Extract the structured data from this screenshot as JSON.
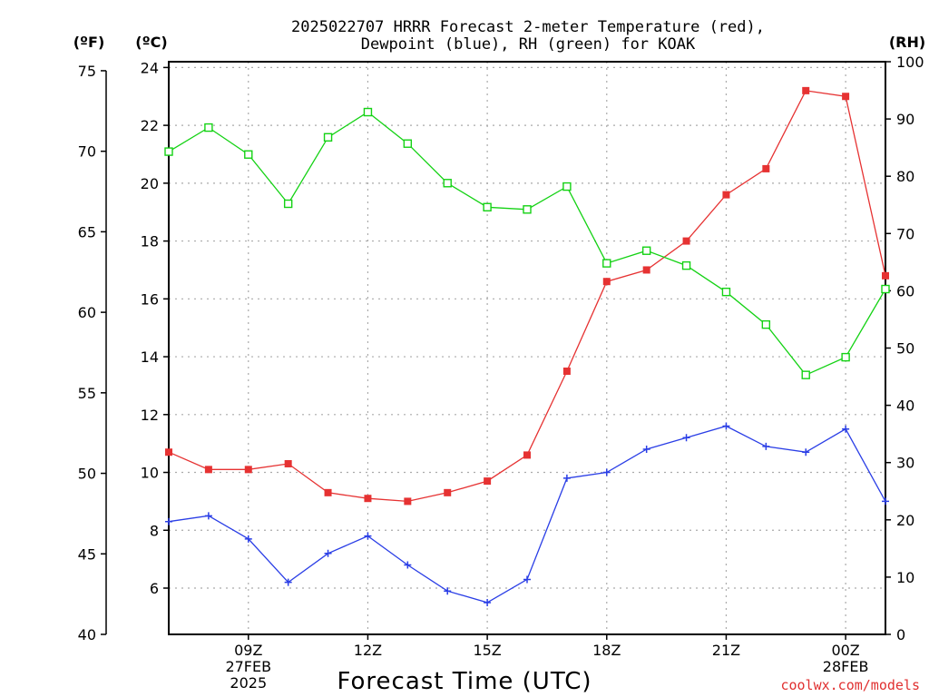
{
  "title_lines": [
    "2025022707 HRRR Forecast 2-meter Temperature (red),",
    "Dewpoint (blue), RH (green) for KOAK"
  ],
  "units": {
    "f": "(ºF)",
    "c": "(ºC)",
    "rh": "(RH)"
  },
  "credit": "coolwx.com/models",
  "colors": {
    "temperature": "#e63232",
    "dewpoint": "#2a3ee6",
    "rh": "#14d214",
    "grid": "#aaaaaa"
  },
  "chart_data": {
    "type": "line",
    "xlabel": "Forecast Time (UTC)",
    "x_hours": [
      7,
      8,
      9,
      10,
      11,
      12,
      13,
      14,
      15,
      16,
      17,
      18,
      19,
      20,
      21,
      22,
      23,
      24,
      25
    ],
    "x_range": [
      7,
      25
    ],
    "x_tick_labels": [
      {
        "hour": 9,
        "lines": [
          "09Z",
          "27FEB",
          "2025"
        ]
      },
      {
        "hour": 12,
        "lines": [
          "12Z"
        ]
      },
      {
        "hour": 15,
        "lines": [
          "15Z"
        ]
      },
      {
        "hour": 18,
        "lines": [
          "18Z"
        ]
      },
      {
        "hour": 21,
        "lines": [
          "21Z"
        ]
      },
      {
        "hour": 24,
        "lines": [
          "00Z",
          "28FEB"
        ]
      }
    ],
    "axes": {
      "celsius": {
        "range": [
          4.4,
          24.2
        ],
        "ticks": [
          6,
          8,
          10,
          12,
          14,
          16,
          18,
          20,
          22,
          24
        ]
      },
      "fahrenheit": {
        "range": [
          40,
          75.56
        ],
        "ticks": [
          40,
          45,
          50,
          55,
          60,
          65,
          70,
          75
        ]
      },
      "rh": {
        "range": [
          0,
          100
        ],
        "ticks": [
          0,
          10,
          20,
          30,
          40,
          50,
          60,
          70,
          80,
          90,
          100
        ]
      }
    },
    "grid": true,
    "series": [
      {
        "key": "temperature",
        "axis": "celsius",
        "marker": "filled-square",
        "values": [
          10.7,
          10.1,
          10.1,
          10.3,
          9.3,
          9.1,
          9.0,
          9.3,
          9.7,
          10.6,
          13.5,
          16.6,
          17.0,
          18.0,
          19.6,
          20.5,
          23.2,
          23.0,
          16.8
        ]
      },
      {
        "key": "dewpoint",
        "axis": "celsius",
        "marker": "plus",
        "values": [
          8.3,
          8.5,
          7.7,
          6.2,
          7.2,
          7.8,
          6.8,
          5.9,
          5.5,
          6.3,
          9.8,
          10.0,
          10.8,
          11.2,
          11.6,
          10.9,
          10.7,
          11.5,
          9.0
        ]
      },
      {
        "key": "rh",
        "axis": "rh",
        "marker": "open-square",
        "values": [
          84.3,
          88.5,
          83.8,
          75.2,
          86.8,
          91.2,
          85.7,
          78.8,
          74.6,
          74.2,
          78.2,
          64.8,
          67.0,
          64.4,
          59.8,
          54.1,
          45.3,
          48.4,
          60.3
        ]
      }
    ]
  }
}
